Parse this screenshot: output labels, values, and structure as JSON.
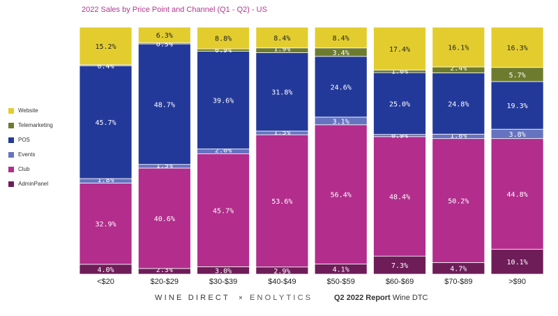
{
  "colors": {
    "Website": "#e3cd2e",
    "Telemarketing": "#6d7b2e",
    "POS": "#23399a",
    "Events": "#6674c0",
    "Club": "#b22d8c",
    "AdminPanel": "#6e1d59"
  },
  "footer": {
    "brand1": "WINE DIRECT",
    "times": "×",
    "brand2": "ENOLYTICS",
    "report_bold": "Q2 2022 Report",
    "report_rest": " Wine DTC"
  },
  "chart_data": {
    "type": "bar",
    "stacked": true,
    "title": "2022 Sales by Price Point and Channel (Q1 - Q2) - US",
    "categories": [
      "<$20",
      "$20-$29",
      "$30-$39",
      "$40-$49",
      "$50-$59",
      "$60-$69",
      "$70-$89",
      ">$90"
    ],
    "series": [
      {
        "name": "AdminPanel",
        "values": [
          4.0,
          2.3,
          3.0,
          2.9,
          4.1,
          7.3,
          4.7,
          10.1
        ],
        "labels": [
          "4.0%",
          "2.3%",
          "3.0%",
          "2.9%",
          "4.1%",
          "7.3%",
          "4.7%",
          "10.1%"
        ]
      },
      {
        "name": "Club",
        "values": [
          32.9,
          40.6,
          45.7,
          53.6,
          56.4,
          48.4,
          50.2,
          44.8
        ],
        "labels": [
          "32.9%",
          "40.6%",
          "45.7%",
          "53.6%",
          "56.4%",
          "48.4%",
          "50.2%",
          "44.8%"
        ]
      },
      {
        "name": "Events",
        "values": [
          1.8,
          1.5,
          2.0,
          1.5,
          3.1,
          0.9,
          1.8,
          3.8
        ],
        "labels": [
          "1.8%",
          "1.5%",
          "2.0%",
          "1.5%",
          "3.1%",
          "0.9%",
          "1.8%",
          "3.8%"
        ]
      },
      {
        "name": "POS",
        "values": [
          45.7,
          48.7,
          39.6,
          31.8,
          24.6,
          25.0,
          24.8,
          19.3
        ],
        "labels": [
          "45.7%",
          "48.7%",
          "39.6%",
          "31.8%",
          "24.6%",
          "25.0%",
          "24.8%",
          "19.3%"
        ]
      },
      {
        "name": "Telemarketing",
        "values": [
          0.4,
          0.5,
          0.9,
          1.9,
          3.4,
          1.0,
          2.4,
          5.7
        ],
        "labels": [
          "0.4%",
          "0.5%",
          "0.9%",
          "1.9%",
          "3.4%",
          "1.0%",
          "2.4%",
          "5.7%"
        ]
      },
      {
        "name": "Website",
        "values": [
          15.2,
          6.3,
          8.8,
          8.4,
          8.4,
          17.4,
          16.1,
          16.3
        ],
        "labels": [
          "15.2%",
          "6.3%",
          "8.8%",
          "8.4%",
          "8.4%",
          "17.4%",
          "16.1%",
          "16.3%"
        ]
      }
    ],
    "legend": [
      "Website",
      "Telemarketing",
      "POS",
      "Events",
      "Club",
      "AdminPanel"
    ],
    "legend_position": "left",
    "ylim": [
      0,
      100
    ],
    "xlabel": "",
    "ylabel": "",
    "grid": false
  }
}
